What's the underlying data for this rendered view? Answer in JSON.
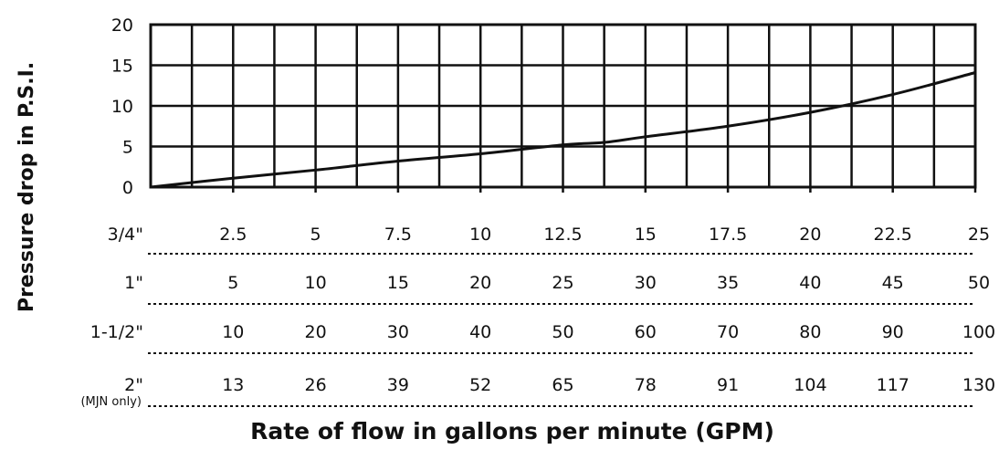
{
  "chart_data": {
    "type": "line",
    "ylabel": "Pressure drop in P.S.I.",
    "xlabel": "Rate of flow in gallons per minute (GPM)",
    "ylim": [
      0,
      20
    ],
    "yticks": [
      "20",
      "15",
      "10",
      "5",
      "0"
    ],
    "grid": true,
    "x_fraction": [
      0,
      0.1,
      0.2,
      0.3,
      0.4,
      0.5,
      0.55,
      0.6,
      0.7,
      0.8,
      0.9,
      1.0
    ],
    "series": [
      {
        "values": [
          0,
          1.1,
          2.1,
          3.2,
          4.1,
          5.2,
          5.5,
          6.2,
          7.5,
          9.2,
          11.4,
          14.1
        ]
      }
    ],
    "flow_table": [
      {
        "label": "3/4\"",
        "note": "",
        "values": [
          "2.5",
          "5",
          "7.5",
          "10",
          "12.5",
          "15",
          "17.5",
          "20",
          "22.5",
          "25"
        ]
      },
      {
        "label": "1\"",
        "note": "",
        "values": [
          "5",
          "10",
          "15",
          "20",
          "25",
          "30",
          "35",
          "40",
          "45",
          "50"
        ]
      },
      {
        "label": "1-1/2\"",
        "note": "",
        "values": [
          "10",
          "20",
          "30",
          "40",
          "50",
          "60",
          "70",
          "80",
          "90",
          "100"
        ]
      },
      {
        "label": "2\"",
        "note": "(MJN only)",
        "values": [
          "13",
          "26",
          "39",
          "52",
          "65",
          "78",
          "91",
          "104",
          "117",
          "130"
        ]
      }
    ]
  }
}
